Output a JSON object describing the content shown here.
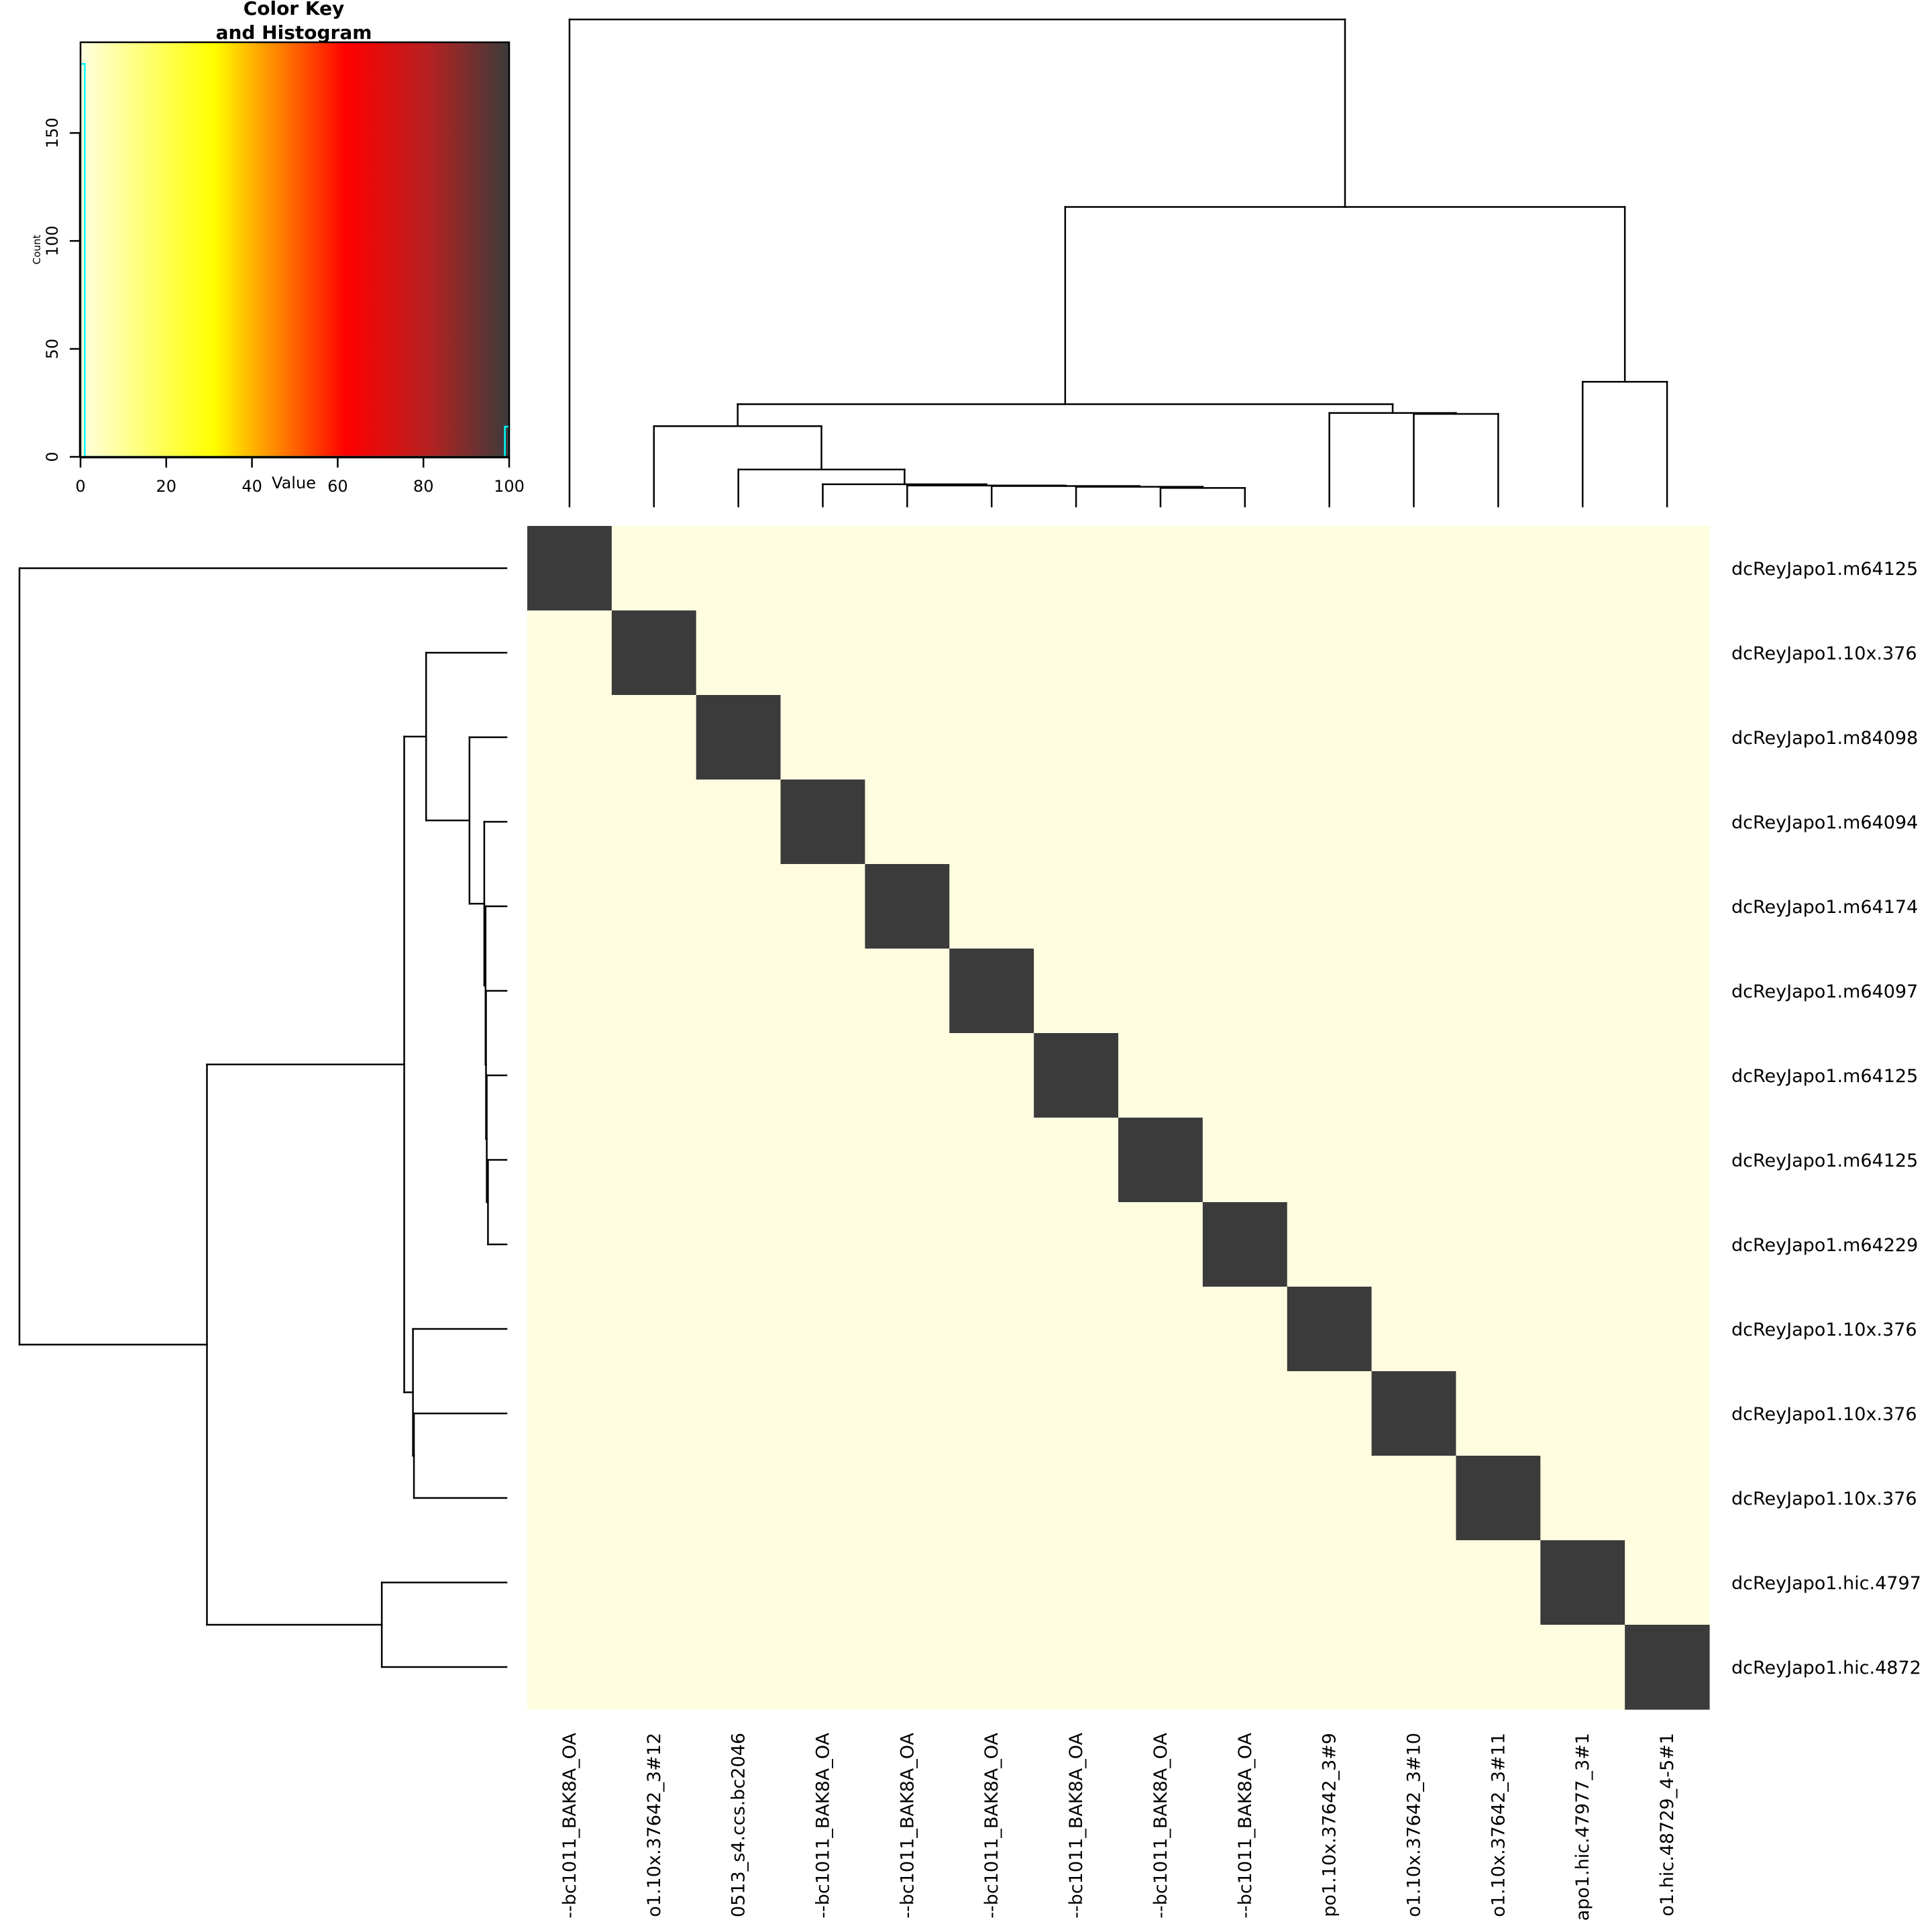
{
  "chart_data": {
    "type": "heatmap",
    "row_labels": [
      "dcReyJapo1.m64125",
      "dcReyJapo1.10x.376",
      "dcReyJapo1.m84098",
      "dcReyJapo1.m64094",
      "dcReyJapo1.m64174",
      "dcReyJapo1.m64097",
      "dcReyJapo1.m64125",
      "dcReyJapo1.m64125",
      "dcReyJapo1.m64229",
      "dcReyJapo1.10x.376",
      "dcReyJapo1.10x.376",
      "dcReyJapo1.10x.376",
      "dcReyJapo1.hic.4797",
      "dcReyJapo1.hic.4872"
    ],
    "col_labels": [
      "--bc1011_BAK8A_OA",
      "o1.10x.37642_3#12",
      "0513_s4.ccs.bc2046",
      "--bc1011_BAK8A_OA",
      "--bc1011_BAK8A_OA",
      "--bc1011_BAK8A_OA",
      "--bc1011_BAK8A_OA",
      "--bc1011_BAK8A_OA",
      "--bc1011_BAK8A_OA",
      "po1.10x.37642_3#9",
      "o1.10x.37642_3#10",
      "o1.10x.37642_3#11",
      "apo1.hic.47977_3#1",
      "o1.hic.48729_4-5#1"
    ],
    "values": [
      [
        100,
        0,
        0,
        0,
        0,
        0,
        0,
        0,
        0,
        0,
        0,
        0,
        0,
        0
      ],
      [
        0,
        100,
        0,
        0,
        0,
        0,
        0,
        0,
        0,
        0,
        0,
        0,
        0,
        0
      ],
      [
        0,
        0,
        100,
        0,
        0,
        0,
        0,
        0,
        0,
        0,
        0,
        0,
        0,
        0
      ],
      [
        0,
        0,
        0,
        100,
        0,
        0,
        0,
        0,
        0,
        0,
        0,
        0,
        0,
        0
      ],
      [
        0,
        0,
        0,
        0,
        100,
        0,
        0,
        0,
        0,
        0,
        0,
        0,
        0,
        0
      ],
      [
        0,
        0,
        0,
        0,
        0,
        100,
        0,
        0,
        0,
        0,
        0,
        0,
        0,
        0
      ],
      [
        0,
        0,
        0,
        0,
        0,
        0,
        100,
        0,
        0,
        0,
        0,
        0,
        0,
        0
      ],
      [
        0,
        0,
        0,
        0,
        0,
        0,
        0,
        100,
        0,
        0,
        0,
        0,
        0,
        0
      ],
      [
        0,
        0,
        0,
        0,
        0,
        0,
        0,
        0,
        100,
        0,
        0,
        0,
        0,
        0
      ],
      [
        0,
        0,
        0,
        0,
        0,
        0,
        0,
        0,
        0,
        100,
        0,
        0,
        0,
        0
      ],
      [
        0,
        0,
        0,
        0,
        0,
        0,
        0,
        0,
        0,
        0,
        100,
        0,
        0,
        0
      ],
      [
        0,
        0,
        0,
        0,
        0,
        0,
        0,
        0,
        0,
        0,
        0,
        100,
        0,
        0
      ],
      [
        0,
        0,
        0,
        0,
        0,
        0,
        0,
        0,
        0,
        0,
        0,
        0,
        100,
        0
      ],
      [
        0,
        0,
        0,
        0,
        0,
        0,
        0,
        0,
        0,
        0,
        0,
        0,
        0,
        100
      ]
    ],
    "color_scale": {
      "range": [
        0,
        100
      ],
      "stops": [
        {
          "value": 0,
          "color": "#FFFFE0"
        },
        {
          "value": 31,
          "color": "#FFFF00"
        },
        {
          "value": 62,
          "color": "#FF0000"
        },
        {
          "value": 82,
          "color": "#B22222"
        },
        {
          "value": 100,
          "color": "#3B3B3B"
        }
      ],
      "low_cell_color": "#FEFDE0",
      "high_cell_color": "#3B3B3B"
    },
    "row_dendrogram": {
      "merges": [
        [
          7,
          8,
          0.038
        ],
        [
          6,
          "n1",
          0.0405
        ],
        [
          5,
          "n2",
          0.042
        ],
        [
          4,
          "n3",
          0.043
        ],
        [
          3,
          "n4",
          0.0456
        ],
        [
          2,
          "n5",
          0.076
        ],
        [
          1,
          "n6",
          0.165
        ],
        [
          10,
          11,
          0.19
        ],
        [
          9,
          "n8",
          0.192
        ],
        [
          "n7",
          "n9",
          0.21
        ],
        [
          12,
          13,
          0.256
        ],
        [
          "n10",
          "n11",
          0.615
        ],
        [
          0,
          "n12",
          1.0
        ]
      ]
    },
    "col_dendrogram": {
      "merges": [
        [
          7,
          8,
          0.038
        ],
        [
          6,
          "n1",
          0.0405
        ],
        [
          5,
          "n2",
          0.042
        ],
        [
          4,
          "n3",
          0.043
        ],
        [
          3,
          "n4",
          0.0456
        ],
        [
          2,
          "n5",
          0.076
        ],
        [
          1,
          "n6",
          0.165
        ],
        [
          10,
          11,
          0.19
        ],
        [
          9,
          "n8",
          0.192
        ],
        [
          "n7",
          "n9",
          0.21
        ],
        [
          12,
          13,
          0.256
        ],
        [
          "n10",
          "n11",
          0.615
        ],
        [
          0,
          "n12",
          1.0
        ]
      ]
    },
    "color_key": {
      "title_line1": "Color Key",
      "title_line2": "and Histogram",
      "xlabel": "Value",
      "ylabel": "Count",
      "xlim": [
        0,
        100
      ],
      "ylim": [
        0,
        192
      ],
      "x_ticks": [
        "0",
        "20",
        "40",
        "60",
        "80",
        "100"
      ],
      "y_ticks": [
        "0",
        "50",
        "100",
        "150"
      ],
      "histogram_color": "#00FFFF",
      "histogram": [
        {
          "from": 0,
          "to": 1,
          "count": 182
        },
        {
          "from": 1,
          "to": 99,
          "count": 0
        },
        {
          "from": 99,
          "to": 100,
          "count": 14
        }
      ]
    }
  }
}
